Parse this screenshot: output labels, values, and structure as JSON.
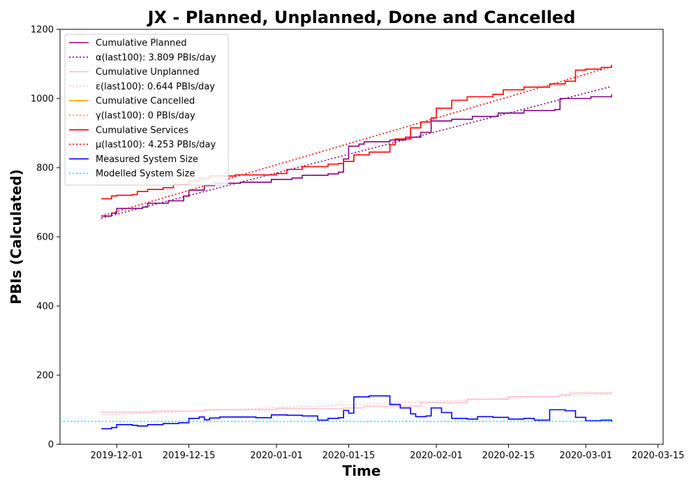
{
  "chart_data": {
    "type": "line",
    "title": "JX - Planned, Unplanned, Done  and Cancelled",
    "xlabel": "Time",
    "ylabel": "PBIs (Calculated)",
    "xlim": [
      "2019-11-20",
      "2020-03-16"
    ],
    "ylim": [
      0,
      1200
    ],
    "x_ticks": [
      "2019-12-01",
      "2019-12-15",
      "2020-01-01",
      "2020-01-15",
      "2020-02-01",
      "2020-02-15",
      "2020-03-01",
      "2020-03-15"
    ],
    "y_ticks": [
      0,
      200,
      400,
      600,
      800,
      1000,
      1200
    ],
    "grid": false,
    "legend_position": "top-left",
    "series": [
      {
        "name": "Cumulative Planned",
        "color": "#800080",
        "style": "solid",
        "points": [
          [
            "2019-11-28",
            660
          ],
          [
            "2019-11-30",
            668
          ],
          [
            "2019-12-01",
            682
          ],
          [
            "2019-12-06",
            686
          ],
          [
            "2019-12-07",
            697
          ],
          [
            "2019-12-11",
            704
          ],
          [
            "2019-12-14",
            718
          ],
          [
            "2019-12-15",
            735
          ],
          [
            "2019-12-18",
            748
          ],
          [
            "2019-12-20",
            755
          ],
          [
            "2019-12-25",
            758
          ],
          [
            "2019-12-31",
            766
          ],
          [
            "2020-01-02",
            766
          ],
          [
            "2020-01-04",
            770
          ],
          [
            "2020-01-06",
            778
          ],
          [
            "2020-01-11",
            782
          ],
          [
            "2020-01-13",
            787
          ],
          [
            "2020-01-14",
            825
          ],
          [
            "2020-01-15",
            862
          ],
          [
            "2020-01-17",
            868
          ],
          [
            "2020-01-18",
            875
          ],
          [
            "2020-01-23",
            880
          ],
          [
            "2020-01-26",
            888
          ],
          [
            "2020-01-29",
            902
          ],
          [
            "2020-01-31",
            935
          ],
          [
            "2020-02-04",
            940
          ],
          [
            "2020-02-08",
            948
          ],
          [
            "2020-02-13",
            958
          ],
          [
            "2020-02-18",
            965
          ],
          [
            "2020-02-24",
            968
          ],
          [
            "2020-02-25",
            1000
          ],
          [
            "2020-03-02",
            1005
          ],
          [
            "2020-03-06",
            1012
          ]
        ]
      },
      {
        "name": "α(last100): 3.809 PBIs/day",
        "color": "#800080",
        "style": "dotted",
        "points": [
          [
            "2019-11-28",
            654
          ],
          [
            "2020-03-06",
            1035
          ]
        ]
      },
      {
        "name": "Cumulative Unplanned",
        "color": "#ffc0cb",
        "style": "solid",
        "points": [
          [
            "2019-11-28",
            93
          ],
          [
            "2019-12-08",
            96
          ],
          [
            "2019-12-18",
            100
          ],
          [
            "2020-01-01",
            103
          ],
          [
            "2020-01-14",
            105
          ],
          [
            "2020-01-18",
            110
          ],
          [
            "2020-01-29",
            120
          ],
          [
            "2020-02-07",
            130
          ],
          [
            "2020-02-15",
            138
          ],
          [
            "2020-02-25",
            143
          ],
          [
            "2020-02-27",
            148
          ],
          [
            "2020-03-06",
            150
          ]
        ]
      },
      {
        "name": "ε(last100): 0.644 PBIs/day",
        "color": "#ffc0cb",
        "style": "dotted",
        "points": [
          [
            "2019-11-28",
            85
          ],
          [
            "2020-03-06",
            145
          ]
        ]
      },
      {
        "name": "Cumulative Cancelled",
        "color": "#ffa500",
        "style": "solid",
        "points": []
      },
      {
        "name": "γ(last100): 0 PBIs/day",
        "color": "#ffa500",
        "style": "dotted",
        "points": []
      },
      {
        "name": "Cumulative Services",
        "color": "#ff0000",
        "style": "solid",
        "points": [
          [
            "2019-11-28",
            710
          ],
          [
            "2019-11-30",
            718
          ],
          [
            "2019-12-01",
            720
          ],
          [
            "2019-12-04",
            722
          ],
          [
            "2019-12-05",
            731
          ],
          [
            "2019-12-07",
            737
          ],
          [
            "2019-12-10",
            742
          ],
          [
            "2019-12-12",
            752
          ],
          [
            "2019-12-15",
            762
          ],
          [
            "2019-12-17",
            768
          ],
          [
            "2019-12-19",
            776
          ],
          [
            "2019-12-24",
            779
          ],
          [
            "2020-01-01",
            783
          ],
          [
            "2020-01-03",
            795
          ],
          [
            "2020-01-06",
            803
          ],
          [
            "2020-01-11",
            810
          ],
          [
            "2020-01-13",
            812
          ],
          [
            "2020-01-14",
            818
          ],
          [
            "2020-01-16",
            837
          ],
          [
            "2020-01-19",
            845
          ],
          [
            "2020-01-23",
            866
          ],
          [
            "2020-01-24",
            883
          ],
          [
            "2020-01-27",
            915
          ],
          [
            "2020-01-29",
            932
          ],
          [
            "2020-01-31",
            944
          ],
          [
            "2020-02-01",
            972
          ],
          [
            "2020-02-04",
            995
          ],
          [
            "2020-02-07",
            1005
          ],
          [
            "2020-02-12",
            1012
          ],
          [
            "2020-02-14",
            1025
          ],
          [
            "2020-02-18",
            1033
          ],
          [
            "2020-02-23",
            1042
          ],
          [
            "2020-02-26",
            1050
          ],
          [
            "2020-02-28",
            1082
          ],
          [
            "2020-03-01",
            1085
          ],
          [
            "2020-03-04",
            1090
          ],
          [
            "2020-03-06",
            1097
          ]
        ]
      },
      {
        "name": "μ(last100): 4.253 PBIs/day",
        "color": "#ff0000",
        "style": "dotted",
        "points": [
          [
            "2019-11-28",
            660
          ],
          [
            "2020-03-06",
            1092
          ]
        ]
      },
      {
        "name": "Measured System Size",
        "color": "#0000ff",
        "style": "solid",
        "points": [
          [
            "2019-11-28",
            45
          ],
          [
            "2019-11-30",
            48
          ],
          [
            "2019-12-01",
            57
          ],
          [
            "2019-12-04",
            55
          ],
          [
            "2019-12-05",
            53
          ],
          [
            "2019-12-07",
            57
          ],
          [
            "2019-12-10",
            60
          ],
          [
            "2019-12-13",
            62
          ],
          [
            "2019-12-15",
            75
          ],
          [
            "2019-12-17",
            79
          ],
          [
            "2019-12-18",
            71
          ],
          [
            "2019-12-19",
            76
          ],
          [
            "2019-12-21",
            79
          ],
          [
            "2019-12-28",
            77
          ],
          [
            "2019-12-31",
            85
          ],
          [
            "2020-01-03",
            84
          ],
          [
            "2020-01-06",
            82
          ],
          [
            "2020-01-09",
            70
          ],
          [
            "2020-01-11",
            75
          ],
          [
            "2020-01-13",
            77
          ],
          [
            "2020-01-14",
            98
          ],
          [
            "2020-01-15",
            90
          ],
          [
            "2020-01-16",
            137
          ],
          [
            "2020-01-19",
            140
          ],
          [
            "2020-01-23",
            115
          ],
          [
            "2020-01-25",
            105
          ],
          [
            "2020-01-27",
            88
          ],
          [
            "2020-01-28",
            80
          ],
          [
            "2020-01-30",
            82
          ],
          [
            "2020-01-31",
            105
          ],
          [
            "2020-02-02",
            92
          ],
          [
            "2020-02-04",
            75
          ],
          [
            "2020-02-07",
            73
          ],
          [
            "2020-02-09",
            80
          ],
          [
            "2020-02-12",
            78
          ],
          [
            "2020-02-15",
            73
          ],
          [
            "2020-02-18",
            75
          ],
          [
            "2020-02-20",
            70
          ],
          [
            "2020-02-23",
            100
          ],
          [
            "2020-02-26",
            97
          ],
          [
            "2020-02-28",
            78
          ],
          [
            "2020-03-01",
            68
          ],
          [
            "2020-03-04",
            70
          ],
          [
            "2020-03-06",
            65
          ]
        ]
      },
      {
        "name": "Modelled System Size",
        "color": "#00ffff",
        "style": "dotted",
        "points": [
          [
            "2019-11-20",
            66
          ],
          [
            "2020-03-06",
            66
          ]
        ]
      }
    ]
  }
}
